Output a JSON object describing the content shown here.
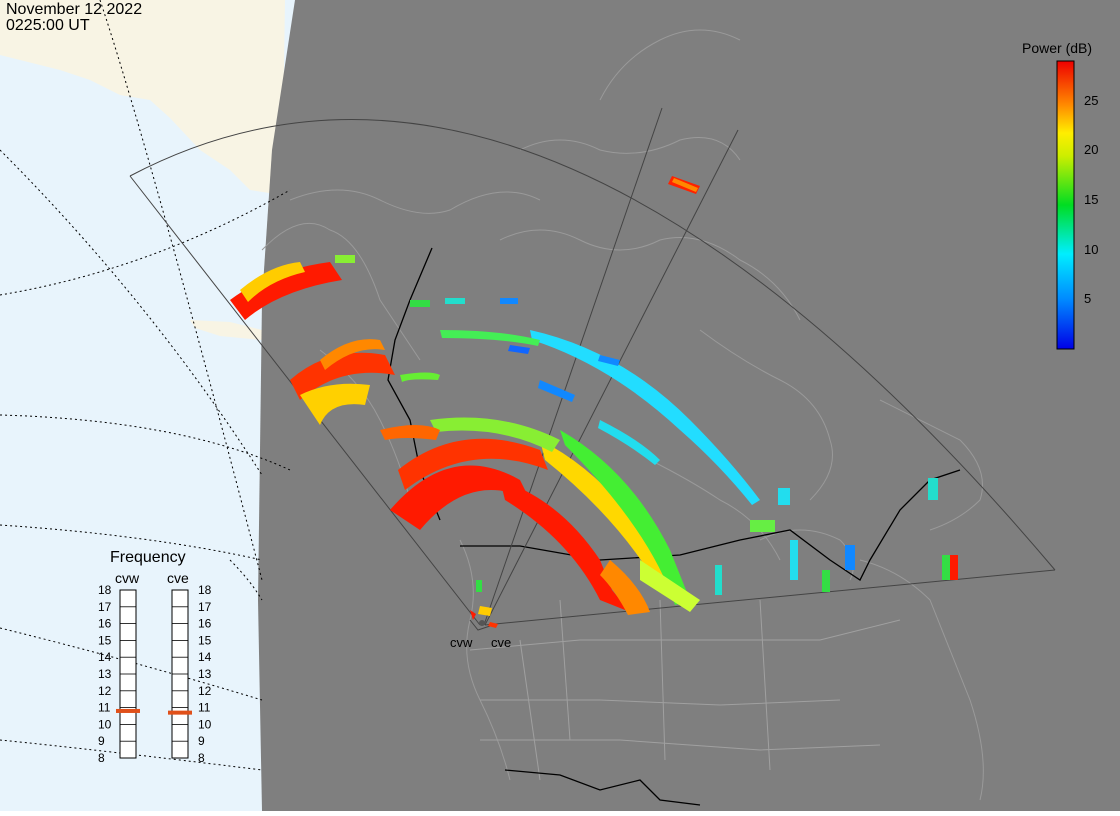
{
  "header": {
    "date": "November 12 2022",
    "time": "0225:00 UT"
  },
  "frequency_panel": {
    "title": "Frequency",
    "columns": [
      {
        "station": "cvw",
        "frequency_mhz": 10.8
      },
      {
        "station": "cve",
        "frequency_mhz": 10.7
      }
    ],
    "scale_labels": [
      "18",
      "17",
      "16",
      "15",
      "14",
      "13",
      "12",
      "11",
      "10",
      "9",
      "8"
    ],
    "marker_color": "#e0501a"
  },
  "colorbar": {
    "title": "Power (dB)",
    "range": [
      0,
      29
    ],
    "ticks": [
      "25",
      "20",
      "15",
      "10",
      "5"
    ],
    "tick_values": [
      25,
      20,
      15,
      10,
      5
    ]
  },
  "radars": [
    {
      "label": "cvw"
    },
    {
      "label": "cve"
    }
  ],
  "colors": {
    "night": "#7f7f7f",
    "day_ocean": "#e8f4fc",
    "day_land": "#f8f4e4",
    "coast": "#9a9a9a",
    "border": "#000000"
  }
}
